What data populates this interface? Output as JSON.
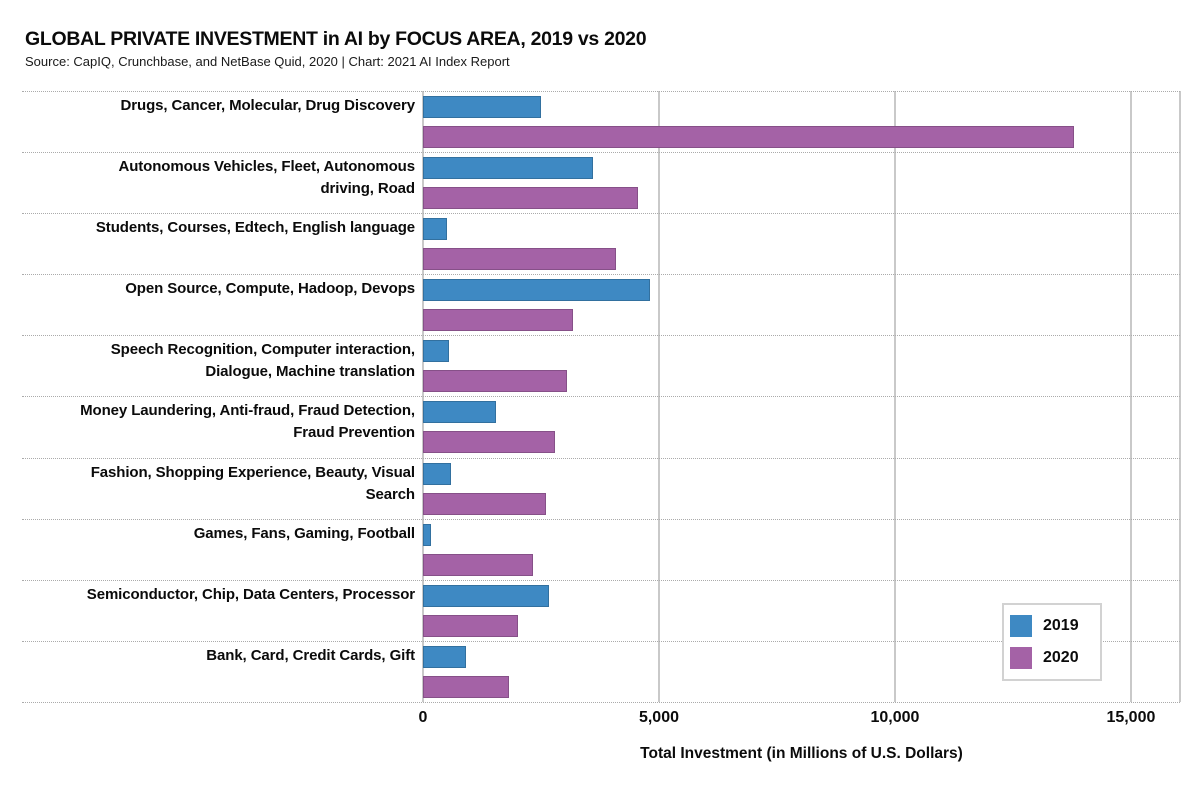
{
  "header": {
    "title": "GLOBAL PRIVATE INVESTMENT in AI by FOCUS AREA, 2019 vs 2020",
    "subtitle": "Source: CapIQ, Crunchbase, and NetBase Quid, 2020 | Chart: 2021 AI Index Report"
  },
  "chart_data": {
    "type": "bar",
    "orientation": "horizontal",
    "title": "GLOBAL PRIVATE INVESTMENT in AI by FOCUS AREA, 2019 vs 2020",
    "subtitle": "Source: CapIQ, Crunchbase, and NetBase Quid, 2020 | Chart: 2021 AI Index Report",
    "categories": [
      "Drugs, Cancer, Molecular, Drug Discovery",
      "Autonomous Vehicles, Fleet, Autonomous driving, Road",
      "Students, Courses, Edtech, English language",
      "Open Source, Compute, Hadoop, Devops",
      "Speech Recognition, Computer interaction, Dialogue, Machine translation",
      "Money Laundering, Anti-fraud, Fraud Detection, Fraud Prevention",
      "Fashion, Shopping Experience, Beauty, Visual Search",
      "Games, Fans, Gaming, Football",
      "Semiconductor, Chip, Data Centers, Processor",
      "Bank, Card, Credit Cards, Gift"
    ],
    "category_lines": [
      [
        "Drugs, Cancer, Molecular, Drug Discovery"
      ],
      [
        "Autonomous Vehicles, Fleet, Autonomous",
        "driving, Road"
      ],
      [
        "Students, Courses, Edtech, English language"
      ],
      [
        "Open Source, Compute, Hadoop, Devops"
      ],
      [
        "Speech Recognition, Computer interaction,",
        "Dialogue, Machine translation"
      ],
      [
        "Money Laundering, Anti-fraud, Fraud Detection,",
        "Fraud Prevention"
      ],
      [
        "Fashion, Shopping Experience, Beauty, Visual",
        "Search"
      ],
      [
        "Games, Fans, Gaming, Football"
      ],
      [
        "Semiconductor, Chip, Data Centers, Processor"
      ],
      [
        "Bank, Card, Credit Cards, Gift"
      ]
    ],
    "series": [
      {
        "name": "2019",
        "color": "#3E89C3",
        "values": [
          2500,
          3600,
          500,
          4800,
          550,
          1550,
          590,
          170,
          2670,
          910
        ]
      },
      {
        "name": "2020",
        "color": "#A462A6",
        "values": [
          13800,
          4550,
          4100,
          3180,
          3050,
          2800,
          2600,
          2330,
          2010,
          1820
        ]
      }
    ],
    "xlabel": "Total Investment (in Millions of U.S. Dollars)",
    "ylabel": "",
    "xlim": [
      0,
      16040
    ],
    "xticks": [
      {
        "value": 0,
        "label": "0"
      },
      {
        "value": 5000,
        "label": "5,000"
      },
      {
        "value": 10000,
        "label": "10,000"
      },
      {
        "value": 15000,
        "label": "15,000"
      }
    ],
    "grid": "vertical",
    "gridline_color": "#c9c9c9",
    "separator_style": "dotted",
    "legend_position": "bottom-right"
  },
  "legend": {
    "items": [
      {
        "label": "2019",
        "color": "#3E89C3"
      },
      {
        "label": "2020",
        "color": "#A462A6"
      }
    ]
  }
}
